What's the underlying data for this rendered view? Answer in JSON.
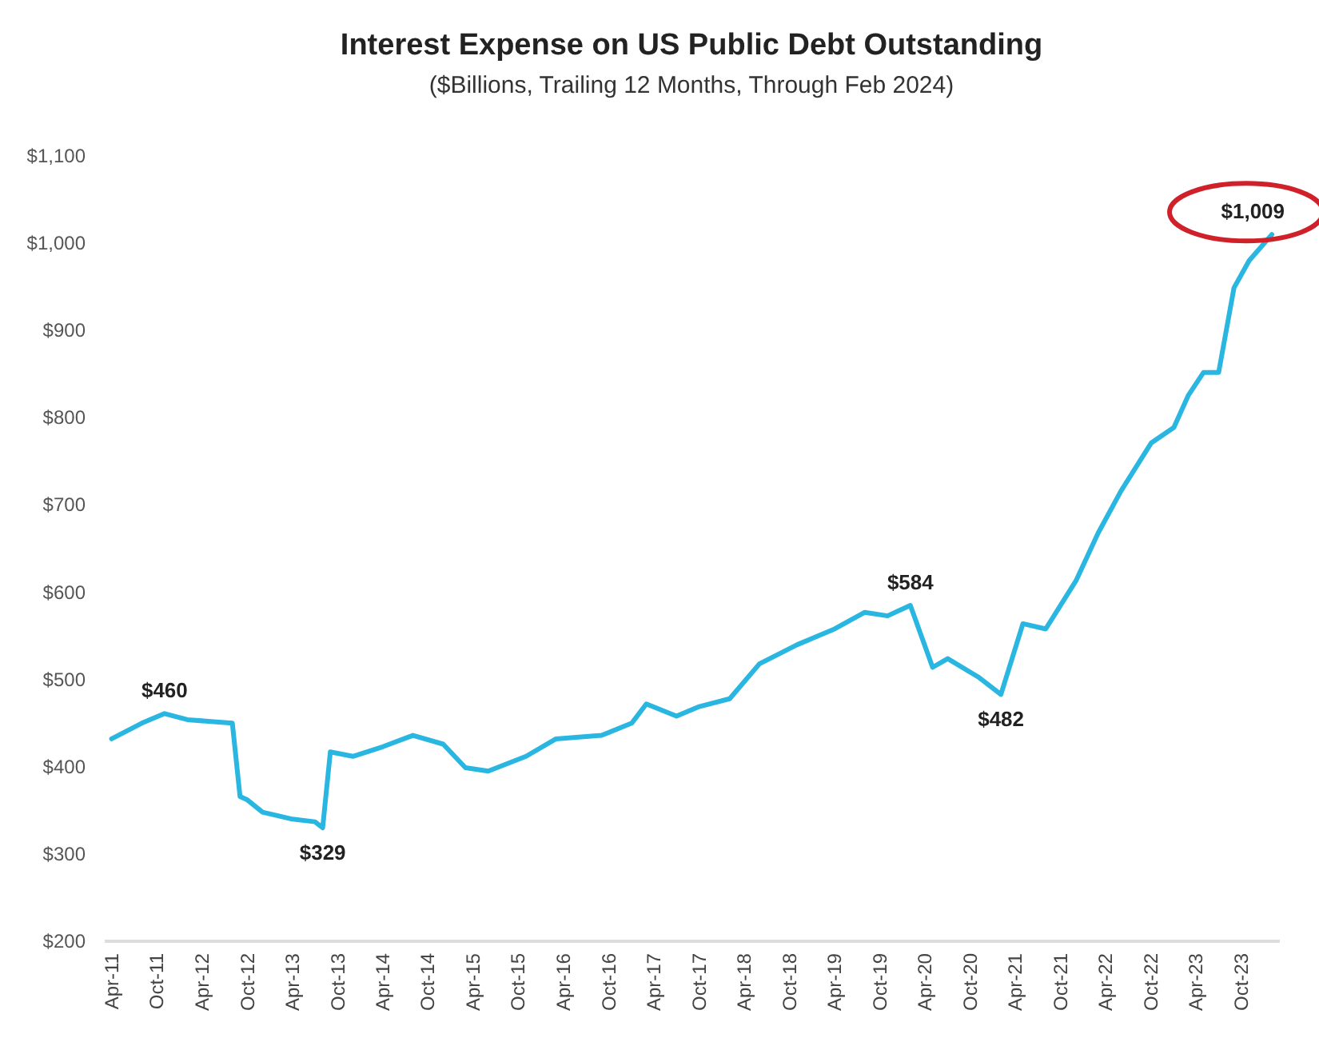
{
  "chart_data": {
    "type": "line",
    "title": "Interest Expense on US Public Debt Outstanding",
    "subtitle": "($Billions, Trailing 12 Months, Through Feb 2024)",
    "x": [
      "2011-04",
      "2011-08",
      "2011-11",
      "2012-02",
      "2012-08",
      "2012-09",
      "2012-10",
      "2012-12",
      "2013-04",
      "2013-07",
      "2013-08",
      "2013-09",
      "2013-12",
      "2014-04",
      "2014-08",
      "2014-12",
      "2015-03",
      "2015-06",
      "2015-11",
      "2016-03",
      "2016-09",
      "2017-01",
      "2017-03",
      "2017-07",
      "2017-10",
      "2018-02",
      "2018-06",
      "2018-11",
      "2019-04",
      "2019-08",
      "2019-11",
      "2020-02",
      "2020-05",
      "2020-07",
      "2020-11",
      "2021-02",
      "2021-05",
      "2021-08",
      "2021-12",
      "2022-03",
      "2022-06",
      "2022-10",
      "2023-01",
      "2023-03",
      "2023-05",
      "2023-07",
      "2023-09",
      "2023-11",
      "2024-02"
    ],
    "series": [
      {
        "color": "#29b6e0",
        "values": [
          431,
          449,
          460,
          453,
          449,
          365,
          361,
          347,
          339,
          336,
          329,
          416,
          411,
          422,
          435,
          425,
          398,
          394,
          411,
          431,
          435,
          449,
          471,
          457,
          468,
          477,
          517,
          539,
          557,
          576,
          572,
          584,
          513,
          523,
          502,
          482,
          563,
          557,
          612,
          667,
          715,
          770,
          788,
          825,
          851,
          851,
          948,
          979,
          1009
        ]
      }
    ],
    "xlim": [
      "2011-03",
      "2024-03"
    ],
    "xticks": [
      {
        "value": "2011-04",
        "label": "Apr-11"
      },
      {
        "value": "2011-10",
        "label": "Oct-11"
      },
      {
        "value": "2012-04",
        "label": "Apr-12"
      },
      {
        "value": "2012-10",
        "label": "Oct-12"
      },
      {
        "value": "2013-04",
        "label": "Apr-13"
      },
      {
        "value": "2013-10",
        "label": "Oct-13"
      },
      {
        "value": "2014-04",
        "label": "Apr-14"
      },
      {
        "value": "2014-10",
        "label": "Oct-14"
      },
      {
        "value": "2015-04",
        "label": "Apr-15"
      },
      {
        "value": "2015-10",
        "label": "Oct-15"
      },
      {
        "value": "2016-04",
        "label": "Apr-16"
      },
      {
        "value": "2016-10",
        "label": "Oct-16"
      },
      {
        "value": "2017-04",
        "label": "Apr-17"
      },
      {
        "value": "2017-10",
        "label": "Oct-17"
      },
      {
        "value": "2018-04",
        "label": "Apr-18"
      },
      {
        "value": "2018-10",
        "label": "Oct-18"
      },
      {
        "value": "2019-04",
        "label": "Apr-19"
      },
      {
        "value": "2019-10",
        "label": "Oct-19"
      },
      {
        "value": "2020-04",
        "label": "Apr-20"
      },
      {
        "value": "2020-10",
        "label": "Oct-20"
      },
      {
        "value": "2021-04",
        "label": "Apr-21"
      },
      {
        "value": "2021-10",
        "label": "Oct-21"
      },
      {
        "value": "2022-04",
        "label": "Apr-22"
      },
      {
        "value": "2022-10",
        "label": "Oct-22"
      },
      {
        "value": "2023-04",
        "label": "Apr-23"
      },
      {
        "value": "2023-10",
        "label": "Oct-23"
      }
    ],
    "ylim": [
      200,
      1100
    ],
    "yticks": [
      {
        "value": 200,
        "label": "$200"
      },
      {
        "value": 300,
        "label": "$300"
      },
      {
        "value": 400,
        "label": "$400"
      },
      {
        "value": 500,
        "label": "$500"
      },
      {
        "value": 600,
        "label": "$600"
      },
      {
        "value": 700,
        "label": "$700"
      },
      {
        "value": 800,
        "label": "$800"
      },
      {
        "value": 900,
        "label": "$900"
      },
      {
        "value": 1000,
        "label": "$1,000"
      },
      {
        "value": 1100,
        "label": "$1,100"
      }
    ],
    "annotations": [
      {
        "text": "$460",
        "x": "2011-11",
        "y": 460
      },
      {
        "text": "$329",
        "x": "2013-08",
        "y": 329
      },
      {
        "text": "$584",
        "x": "2020-02",
        "y": 584
      },
      {
        "text": "$482",
        "x": "2021-02",
        "y": 482
      },
      {
        "text": "$1,009",
        "x": "2024-02",
        "y": 1009
      }
    ],
    "grid": false,
    "legend": false,
    "marker": "none",
    "line_style": "solid"
  }
}
